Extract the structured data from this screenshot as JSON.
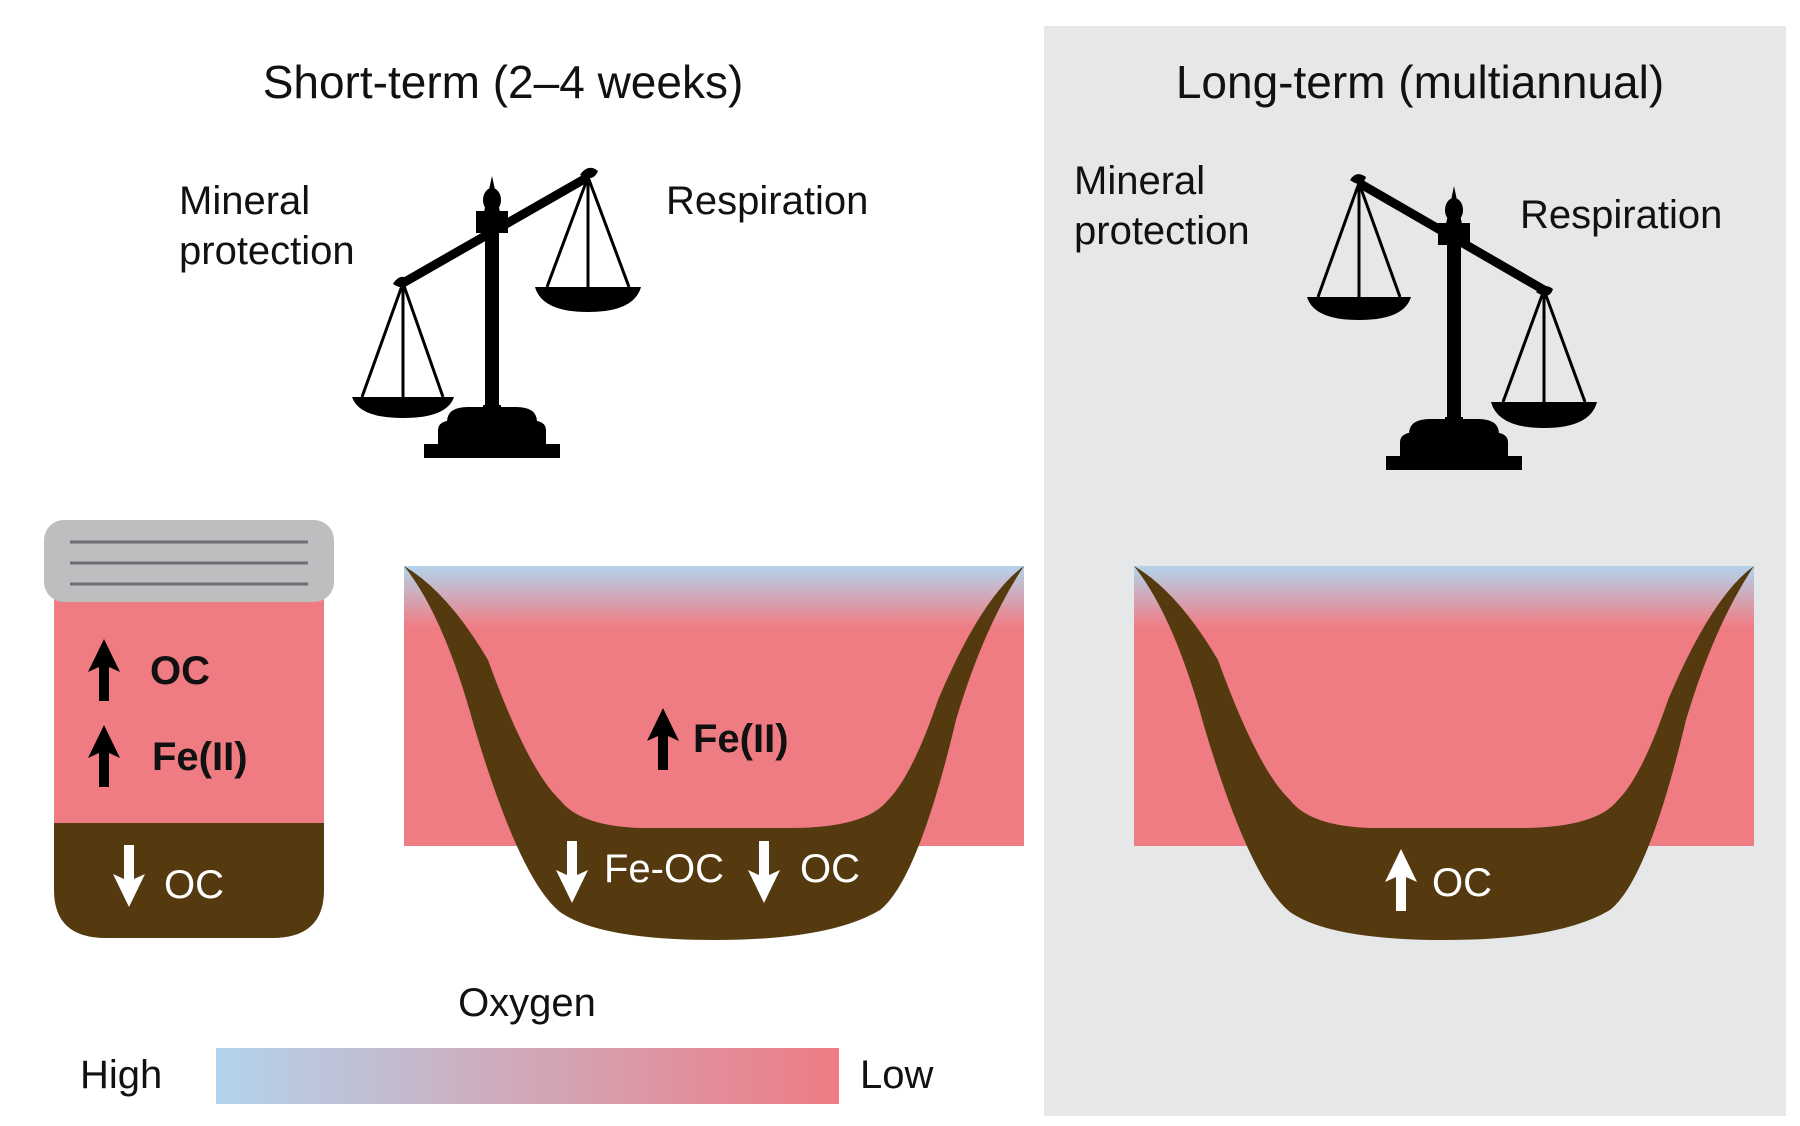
{
  "short_term": {
    "title": "Short-term (2–4 weeks)",
    "mineral_label_line1": "Mineral",
    "mineral_label_line2": "protection",
    "respiration_label": "Respiration",
    "jar": {
      "water_items": [
        {
          "direction": "up",
          "label": "OC"
        },
        {
          "direction": "up",
          "label": "Fe(II)"
        }
      ],
      "soil_item": {
        "direction": "down",
        "label": "OC"
      }
    },
    "basin": {
      "water_item": {
        "direction": "up",
        "label": "Fe(II)"
      },
      "soil_items": [
        {
          "direction": "down",
          "label": "Fe-OC"
        },
        {
          "direction": "down",
          "label": "OC"
        }
      ]
    }
  },
  "long_term": {
    "title": "Long-term (multiannual)",
    "mineral_label_line1": "Mineral",
    "mineral_label_line2": "protection",
    "respiration_label": "Respiration",
    "basin": {
      "soil_item": {
        "direction": "up",
        "label": "OC"
      }
    }
  },
  "oxygen_legend": {
    "title": "Oxygen",
    "high_label": "High",
    "low_label": "Low"
  },
  "colors": {
    "panel_bg": "#e6e7e8",
    "oxygen_high": "#b2d4ec",
    "oxygen_low": "#ef7b84",
    "water_anoxic": "#f07c83",
    "soil": "#553a10",
    "lid": "#bcbec0",
    "scale": "#000000"
  }
}
